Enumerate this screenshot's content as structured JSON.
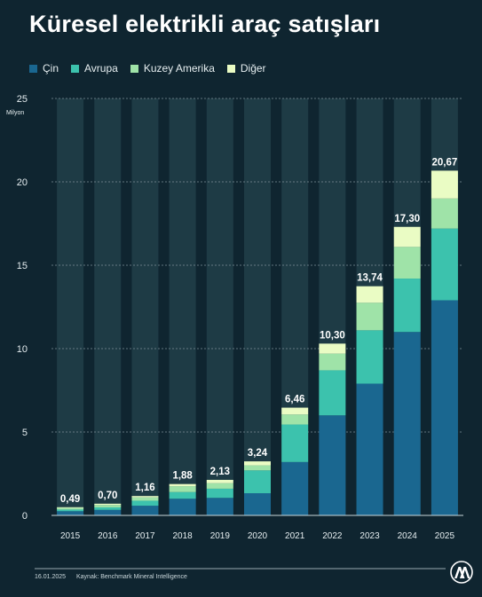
{
  "title": "Küresel elektrikli araç satışları",
  "footer": {
    "date": "16.01.2025",
    "source": "Kaynak: Benchmark Mineral Intelligence"
  },
  "logo_icon": "aa-logo-icon",
  "colors": {
    "background": "#0f2530",
    "column": "#1e3b45",
    "cin": "#1a6790",
    "avrupa": "#3cc2ad",
    "kuzey_amerika": "#9fe3a8",
    "diger": "#eafcc4"
  },
  "chart_data": {
    "type": "bar",
    "stacked": true,
    "categories": [
      "2015",
      "2016",
      "2017",
      "2018",
      "2019",
      "2020",
      "2021",
      "2022",
      "2023",
      "2024",
      "2025"
    ],
    "ylabel": "Milyon",
    "ylim": [
      0,
      25
    ],
    "yticks": [
      0,
      5,
      10,
      15,
      20,
      25
    ],
    "grid": true,
    "legend_position": "top-left",
    "series": [
      {
        "name": "Çin",
        "color": "#1a6790",
        "values": [
          0.25,
          0.33,
          0.58,
          1.0,
          1.05,
          1.33,
          3.2,
          6.0,
          7.9,
          11.0,
          12.9
        ]
      },
      {
        "name": "Avrupa",
        "color": "#3cc2ad",
        "values": [
          0.1,
          0.15,
          0.3,
          0.4,
          0.55,
          1.37,
          2.25,
          2.7,
          3.2,
          3.2,
          4.3
        ]
      },
      {
        "name": "Kuzey Amerika",
        "color": "#9fe3a8",
        "values": [
          0.1,
          0.15,
          0.2,
          0.35,
          0.33,
          0.3,
          0.6,
          1.0,
          1.65,
          1.9,
          1.8
        ]
      },
      {
        "name": "Diğer",
        "color": "#eafcc4",
        "values": [
          0.04,
          0.07,
          0.08,
          0.13,
          0.2,
          0.24,
          0.41,
          0.6,
          0.99,
          1.2,
          1.67
        ]
      }
    ],
    "totals": [
      "0,49",
      "0,70",
      "1,16",
      "1,88",
      "2,13",
      "3,24",
      "6,46",
      "10,30",
      "13,74",
      "17,30",
      "20,67"
    ],
    "total_values": [
      0.49,
      0.7,
      1.16,
      1.88,
      2.13,
      3.24,
      6.46,
      10.3,
      13.74,
      17.3,
      20.67
    ]
  }
}
